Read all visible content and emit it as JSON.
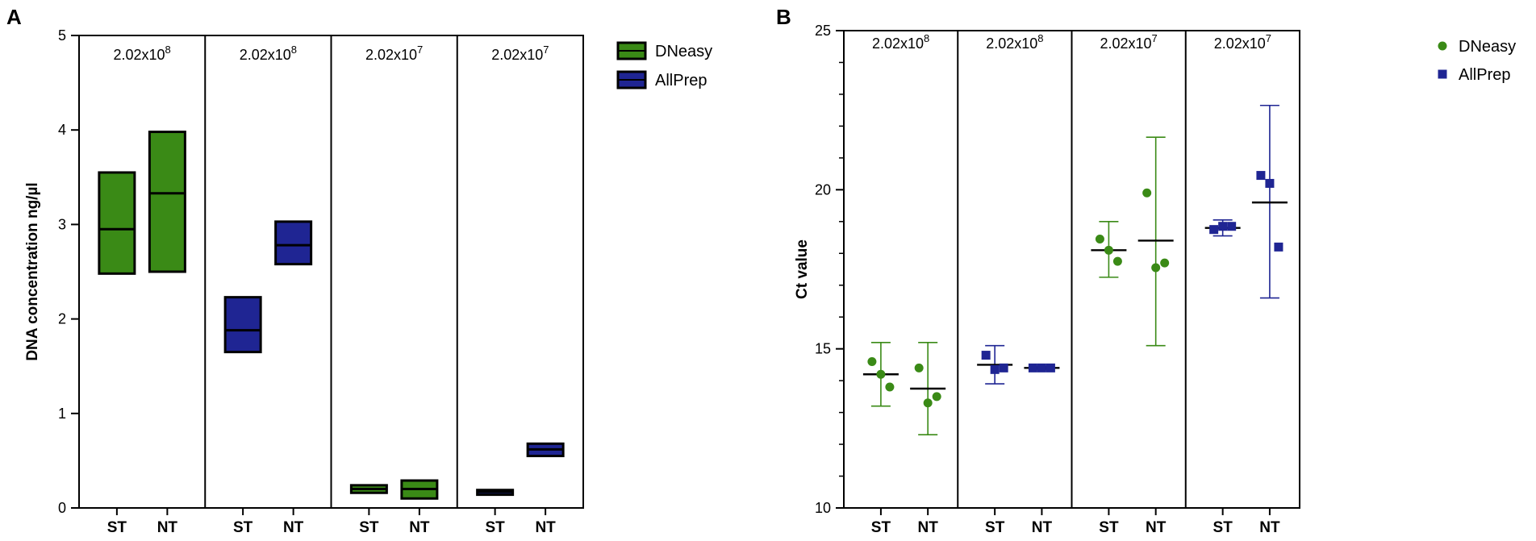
{
  "chart_data": [
    {
      "type": "box",
      "panel_label": "A",
      "ylabel": "DNA concentration ng/µl",
      "ylim": [
        0,
        5
      ],
      "yticks": [
        0,
        1,
        2,
        3,
        4,
        5
      ],
      "legend_position": "top-right",
      "legend": [
        {
          "name": "DNeasy",
          "color": "#3a8a16"
        },
        {
          "name": "AllPrep",
          "color": "#1f2593"
        }
      ],
      "groups": [
        {
          "label_base": "2.02x10",
          "label_exp": "8",
          "categories": [
            "ST",
            "NT"
          ]
        },
        {
          "label_base": "2.02x10",
          "label_exp": "8",
          "categories": [
            "ST",
            "NT"
          ]
        },
        {
          "label_base": "2.02x10",
          "label_exp": "7",
          "categories": [
            "ST",
            "NT"
          ]
        },
        {
          "label_base": "2.02x10",
          "label_exp": "7",
          "categories": [
            "ST",
            "NT"
          ]
        }
      ],
      "boxes": [
        {
          "group": 0,
          "cat": 0,
          "series": "DNeasy",
          "min": 2.48,
          "median": 2.95,
          "max": 3.55
        },
        {
          "group": 0,
          "cat": 1,
          "series": "DNeasy",
          "min": 2.5,
          "median": 3.33,
          "max": 3.98
        },
        {
          "group": 1,
          "cat": 0,
          "series": "AllPrep",
          "min": 1.65,
          "median": 1.88,
          "max": 2.23
        },
        {
          "group": 1,
          "cat": 1,
          "series": "AllPrep",
          "min": 2.58,
          "median": 2.78,
          "max": 3.03
        },
        {
          "group": 2,
          "cat": 0,
          "series": "DNeasy",
          "min": 0.16,
          "median": 0.2,
          "max": 0.24
        },
        {
          "group": 2,
          "cat": 1,
          "series": "DNeasy",
          "min": 0.1,
          "median": 0.2,
          "max": 0.29
        },
        {
          "group": 3,
          "cat": 0,
          "series": "AllPrep",
          "min": 0.14,
          "median": 0.17,
          "max": 0.19
        },
        {
          "group": 3,
          "cat": 1,
          "series": "AllPrep",
          "min": 0.55,
          "median": 0.62,
          "max": 0.68
        }
      ]
    },
    {
      "type": "scatter",
      "panel_label": "B",
      "ylabel": "Ct value",
      "ylim": [
        10,
        25
      ],
      "yticks": [
        10,
        15,
        20,
        25
      ],
      "legend_position": "top-right",
      "legend": [
        {
          "name": "DNeasy",
          "color": "#3a8a16",
          "marker": "circle"
        },
        {
          "name": "AllPrep",
          "color": "#1f2593",
          "marker": "square"
        }
      ],
      "groups": [
        {
          "label_base": "2.02x10",
          "label_exp": "8",
          "categories": [
            "ST",
            "NT"
          ]
        },
        {
          "label_base": "2.02x10",
          "label_exp": "8",
          "categories": [
            "ST",
            "NT"
          ]
        },
        {
          "label_base": "2.02x10",
          "label_exp": "7",
          "categories": [
            "ST",
            "NT"
          ]
        },
        {
          "label_base": "2.02x10",
          "label_exp": "7",
          "categories": [
            "ST",
            "NT"
          ]
        }
      ],
      "points": [
        {
          "group": 0,
          "cat": 0,
          "series": "DNeasy",
          "values": [
            14.6,
            14.2,
            13.8
          ],
          "mean": 14.2,
          "err_low": 13.2,
          "err_high": 15.2
        },
        {
          "group": 0,
          "cat": 1,
          "series": "DNeasy",
          "values": [
            14.4,
            13.3,
            13.5
          ],
          "mean": 13.75,
          "err_low": 12.3,
          "err_high": 15.2
        },
        {
          "group": 1,
          "cat": 0,
          "series": "AllPrep",
          "values": [
            14.8,
            14.35,
            14.4
          ],
          "mean": 14.5,
          "err_low": 13.9,
          "err_high": 15.1
        },
        {
          "group": 1,
          "cat": 1,
          "series": "AllPrep",
          "values": [
            14.4,
            14.4,
            14.4
          ],
          "mean": 14.4,
          "err_low": 14.35,
          "err_high": 14.45
        },
        {
          "group": 2,
          "cat": 0,
          "series": "DNeasy",
          "values": [
            18.45,
            18.1,
            17.75
          ],
          "mean": 18.1,
          "err_low": 17.25,
          "err_high": 19.0
        },
        {
          "group": 2,
          "cat": 1,
          "series": "DNeasy",
          "values": [
            19.9,
            17.55,
            17.7
          ],
          "mean": 18.4,
          "err_low": 15.1,
          "err_high": 21.65
        },
        {
          "group": 3,
          "cat": 0,
          "series": "AllPrep",
          "values": [
            18.75,
            18.85,
            18.85
          ],
          "mean": 18.8,
          "err_low": 18.55,
          "err_high": 19.05
        },
        {
          "group": 3,
          "cat": 1,
          "series": "AllPrep",
          "values": [
            20.45,
            20.2,
            18.2
          ],
          "mean": 19.6,
          "err_low": 16.6,
          "err_high": 22.65
        }
      ]
    }
  ]
}
